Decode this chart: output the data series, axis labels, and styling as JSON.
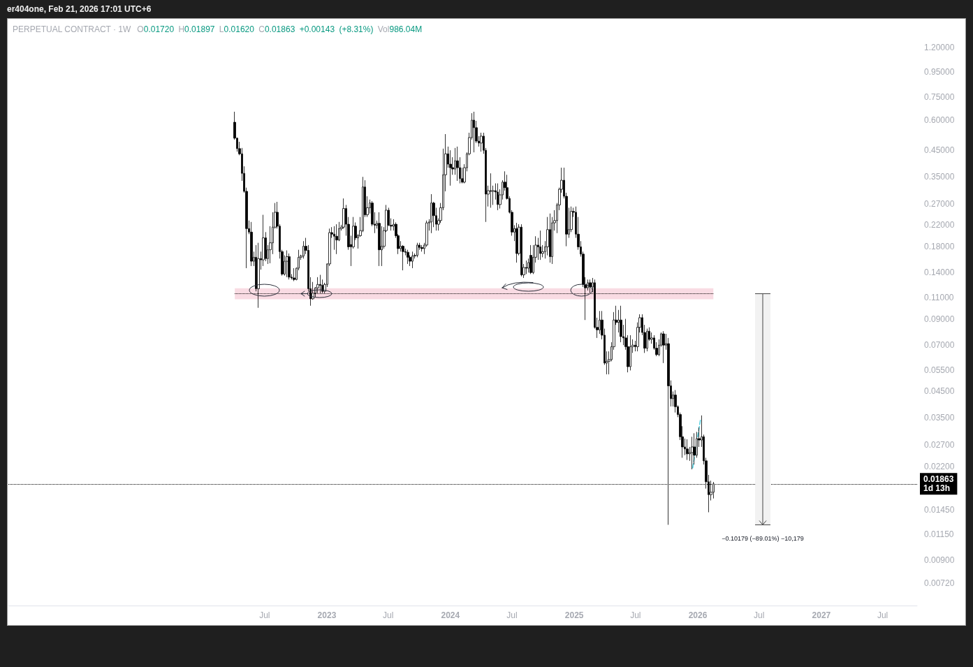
{
  "chart_data": {
    "type": "candlestick",
    "title": "PERPETUAL CONTRACT · 1W",
    "subtitle": "O0.01720 H0.01897 L0.01620 C0.01863 +0.00143 (+8.31%) Vol986.04M",
    "annotations": [
      "er404one, Feb 21, 2026 17:01 UTC+6",
      "−0.10179 (−89.01%) −10,179"
    ],
    "series": [
      {
        "color": "#000000",
        "x": [
          "2022-04-04",
          "2022-04-11",
          "2022-04-18",
          "2022-04-25",
          "2022-05-02",
          "2022-05-09",
          "2022-05-16",
          "2022-05-23",
          "2022-05-30",
          "2022-06-06",
          "2022-06-13",
          "2022-06-20",
          "2022-06-27",
          "2022-07-04",
          "2022-07-11",
          "2022-07-18",
          "2022-07-25",
          "2022-08-01",
          "2022-08-08",
          "2022-08-15",
          "2022-08-22",
          "2022-08-29",
          "2022-09-05",
          "2022-09-12",
          "2022-09-19",
          "2022-09-26",
          "2022-10-03",
          "2022-10-10",
          "2022-10-17",
          "2022-10-24",
          "2022-10-31",
          "2022-11-07",
          "2022-11-14",
          "2022-11-21",
          "2022-11-28",
          "2022-12-05",
          "2022-12-12",
          "2022-12-19",
          "2022-12-26",
          "2023-01-02",
          "2023-01-09",
          "2023-01-16",
          "2023-01-23",
          "2023-01-30",
          "2023-02-06",
          "2023-02-13",
          "2023-02-20",
          "2023-02-27",
          "2023-03-06",
          "2023-03-13",
          "2023-03-20",
          "2023-03-27",
          "2023-04-03",
          "2023-04-10",
          "2023-04-17",
          "2023-04-24",
          "2023-05-01",
          "2023-05-08",
          "2023-05-15",
          "2023-05-22",
          "2023-05-29",
          "2023-06-05",
          "2023-06-12",
          "2023-06-19",
          "2023-06-26",
          "2023-07-03",
          "2023-07-10",
          "2023-07-17",
          "2023-07-24",
          "2023-07-31",
          "2023-08-07",
          "2023-08-14",
          "2023-08-21",
          "2023-08-28",
          "2023-09-04",
          "2023-09-11",
          "2023-09-18",
          "2023-09-25",
          "2023-10-02",
          "2023-10-09",
          "2023-10-16",
          "2023-10-23",
          "2023-10-30",
          "2023-11-06",
          "2023-11-13",
          "2023-11-20",
          "2023-11-27",
          "2023-12-04",
          "2023-12-11",
          "2023-12-18",
          "2023-12-25",
          "2024-01-01",
          "2024-01-08",
          "2024-01-15",
          "2024-01-22",
          "2024-01-29",
          "2024-02-05",
          "2024-02-12",
          "2024-02-19",
          "2024-02-26",
          "2024-03-04",
          "2024-03-11",
          "2024-03-18",
          "2024-03-25",
          "2024-04-01",
          "2024-04-08",
          "2024-04-15",
          "2024-04-22",
          "2024-04-29",
          "2024-05-06",
          "2024-05-13",
          "2024-05-20",
          "2024-05-27",
          "2024-06-03",
          "2024-06-10",
          "2024-06-17",
          "2024-06-24",
          "2024-07-01",
          "2024-07-08",
          "2024-07-15",
          "2024-07-22",
          "2024-07-29",
          "2024-08-05",
          "2024-08-12",
          "2024-08-19",
          "2024-08-26",
          "2024-09-02",
          "2024-09-09",
          "2024-09-16",
          "2024-09-23",
          "2024-09-30",
          "2024-10-07",
          "2024-10-14",
          "2024-10-21",
          "2024-10-28",
          "2024-11-04",
          "2024-11-11",
          "2024-11-18",
          "2024-11-25",
          "2024-12-02",
          "2024-12-09",
          "2024-12-16",
          "2024-12-23",
          "2024-12-30",
          "2025-01-06",
          "2025-01-13",
          "2025-01-20",
          "2025-01-27",
          "2025-02-03",
          "2025-02-10",
          "2025-02-17",
          "2025-02-24",
          "2025-03-03",
          "2025-03-10",
          "2025-03-17",
          "2025-03-24",
          "2025-03-31",
          "2025-04-07",
          "2025-04-14",
          "2025-04-21",
          "2025-04-28",
          "2025-05-05",
          "2025-05-12",
          "2025-05-19",
          "2025-05-26",
          "2025-06-02",
          "2025-06-09",
          "2025-06-16",
          "2025-06-23",
          "2025-06-30",
          "2025-07-07",
          "2025-07-14",
          "2025-07-21",
          "2025-07-28",
          "2025-08-04",
          "2025-08-11",
          "2025-08-18",
          "2025-08-25",
          "2025-09-01",
          "2025-09-08",
          "2025-09-15",
          "2025-09-22",
          "2025-09-29",
          "2025-10-06",
          "2025-10-13",
          "2025-10-20",
          "2025-10-27",
          "2025-11-03",
          "2025-11-10",
          "2025-11-17",
          "2025-11-24",
          "2025-12-01",
          "2025-12-08",
          "2025-12-15",
          "2025-12-22",
          "2025-12-29",
          "2026-01-05",
          "2026-01-12",
          "2026-01-19",
          "2026-01-26",
          "2026-02-02",
          "2026-02-09",
          "2026-02-16"
        ],
        "ohlc": [
          [
            0.588,
            0.65,
            0.498,
            0.505
          ],
          [
            0.505,
            0.508,
            0.444,
            0.457
          ],
          [
            0.457,
            0.488,
            0.429,
            0.435
          ],
          [
            0.435,
            0.46,
            0.336,
            0.361
          ],
          [
            0.361,
            0.386,
            0.3,
            0.304
          ],
          [
            0.304,
            0.315,
            0.146,
            0.213
          ],
          [
            0.213,
            0.23,
            0.202,
            0.206
          ],
          [
            0.206,
            0.227,
            0.149,
            0.156
          ],
          [
            0.156,
            0.171,
            0.149,
            0.162
          ],
          [
            0.162,
            0.182,
            0.117,
            0.12
          ],
          [
            0.12,
            0.186,
            0.1,
            0.16
          ],
          [
            0.16,
            0.171,
            0.144,
            0.158
          ],
          [
            0.158,
            0.243,
            0.149,
            0.195
          ],
          [
            0.195,
            0.206,
            0.156,
            0.16
          ],
          [
            0.16,
            0.182,
            0.152,
            0.174
          ],
          [
            0.174,
            0.218,
            0.153,
            0.186
          ],
          [
            0.186,
            0.249,
            0.167,
            0.216
          ],
          [
            0.216,
            0.272,
            0.213,
            0.249
          ],
          [
            0.249,
            0.275,
            0.213,
            0.218
          ],
          [
            0.218,
            0.222,
            0.16,
            0.171
          ],
          [
            0.171,
            0.174,
            0.136,
            0.138
          ],
          [
            0.138,
            0.165,
            0.136,
            0.156
          ],
          [
            0.156,
            0.173,
            0.134,
            0.163
          ],
          [
            0.163,
            0.168,
            0.131,
            0.134
          ],
          [
            0.134,
            0.138,
            0.131,
            0.133
          ],
          [
            0.133,
            0.146,
            0.129,
            0.131
          ],
          [
            0.131,
            0.147,
            0.13,
            0.146
          ],
          [
            0.146,
            0.174,
            0.143,
            0.162
          ],
          [
            0.162,
            0.166,
            0.158,
            0.164
          ],
          [
            0.164,
            0.189,
            0.16,
            0.18
          ],
          [
            0.18,
            0.195,
            0.167,
            0.173
          ],
          [
            0.173,
            0.182,
            0.117,
            0.12
          ],
          [
            0.12,
            0.134,
            0.102,
            0.109
          ],
          [
            0.109,
            0.128,
            0.108,
            0.115
          ],
          [
            0.115,
            0.122,
            0.111,
            0.121
          ],
          [
            0.121,
            0.134,
            0.115,
            0.125
          ],
          [
            0.125,
            0.137,
            0.115,
            0.124
          ],
          [
            0.124,
            0.131,
            0.115,
            0.117
          ],
          [
            0.117,
            0.127,
            0.115,
            0.125
          ],
          [
            0.125,
            0.153,
            0.122,
            0.152
          ],
          [
            0.152,
            0.213,
            0.149,
            0.205
          ],
          [
            0.205,
            0.216,
            0.195,
            0.202
          ],
          [
            0.202,
            0.218,
            0.174,
            0.198
          ],
          [
            0.198,
            0.222,
            0.167,
            0.191
          ],
          [
            0.191,
            0.227,
            0.189,
            0.213
          ],
          [
            0.213,
            0.221,
            0.209,
            0.216
          ],
          [
            0.216,
            0.284,
            0.213,
            0.258
          ],
          [
            0.258,
            0.267,
            0.199,
            0.222
          ],
          [
            0.222,
            0.238,
            0.174,
            0.179
          ],
          [
            0.183,
            0.199,
            0.149,
            0.179
          ],
          [
            0.179,
            0.238,
            0.176,
            0.218
          ],
          [
            0.218,
            0.226,
            0.191,
            0.195
          ],
          [
            0.195,
            0.202,
            0.176,
            0.199
          ],
          [
            0.199,
            0.238,
            0.197,
            0.209
          ],
          [
            0.209,
            0.349,
            0.206,
            0.317
          ],
          [
            0.317,
            0.338,
            0.238,
            0.243
          ],
          [
            0.243,
            0.29,
            0.238,
            0.26
          ],
          [
            0.26,
            0.281,
            0.246,
            0.272
          ],
          [
            0.272,
            0.277,
            0.218,
            0.222
          ],
          [
            0.222,
            0.249,
            0.204,
            0.22
          ],
          [
            0.22,
            0.23,
            0.213,
            0.224
          ],
          [
            0.224,
            0.249,
            0.149,
            0.174
          ],
          [
            0.174,
            0.218,
            0.149,
            0.18
          ],
          [
            0.18,
            0.216,
            0.176,
            0.209
          ],
          [
            0.209,
            0.267,
            0.206,
            0.254
          ],
          [
            0.254,
            0.26,
            0.218,
            0.22
          ],
          [
            0.22,
            0.235,
            0.209,
            0.218
          ],
          [
            0.218,
            0.233,
            0.209,
            0.222
          ],
          [
            0.222,
            0.226,
            0.195,
            0.199
          ],
          [
            0.199,
            0.202,
            0.167,
            0.176
          ],
          [
            0.176,
            0.189,
            0.171,
            0.18
          ],
          [
            0.18,
            0.182,
            0.143,
            0.171
          ],
          [
            0.171,
            0.176,
            0.165,
            0.17
          ],
          [
            0.17,
            0.174,
            0.152,
            0.162
          ],
          [
            0.162,
            0.165,
            0.149,
            0.156
          ],
          [
            0.156,
            0.171,
            0.146,
            0.164
          ],
          [
            0.164,
            0.168,
            0.16,
            0.165
          ],
          [
            0.165,
            0.186,
            0.162,
            0.182
          ],
          [
            0.182,
            0.186,
            0.174,
            0.178
          ],
          [
            0.178,
            0.182,
            0.171,
            0.176
          ],
          [
            0.176,
            0.186,
            0.167,
            0.182
          ],
          [
            0.182,
            0.23,
            0.179,
            0.225
          ],
          [
            0.225,
            0.233,
            0.209,
            0.227
          ],
          [
            0.227,
            0.296,
            0.204,
            0.272
          ],
          [
            0.272,
            0.275,
            0.216,
            0.241
          ],
          [
            0.241,
            0.26,
            0.209,
            0.222
          ],
          [
            0.222,
            0.235,
            0.209,
            0.23
          ],
          [
            0.23,
            0.272,
            0.225,
            0.26
          ],
          [
            0.26,
            0.457,
            0.254,
            0.356
          ],
          [
            0.356,
            0.525,
            0.304,
            0.435
          ],
          [
            0.435,
            0.466,
            0.381,
            0.394
          ],
          [
            0.394,
            0.45,
            0.321,
            0.381
          ],
          [
            0.381,
            0.421,
            0.356,
            0.376
          ],
          [
            0.376,
            0.46,
            0.356,
            0.407
          ],
          [
            0.407,
            0.466,
            0.336,
            0.381
          ],
          [
            0.381,
            0.421,
            0.328,
            0.343
          ],
          [
            0.343,
            0.381,
            0.328,
            0.332
          ],
          [
            0.332,
            0.394,
            0.328,
            0.381
          ],
          [
            0.381,
            0.441,
            0.368,
            0.435
          ],
          [
            0.435,
            0.532,
            0.429,
            0.508
          ],
          [
            0.508,
            0.641,
            0.498,
            0.6
          ],
          [
            0.6,
            0.65,
            0.441,
            0.558
          ],
          [
            0.558,
            0.596,
            0.482,
            0.491
          ],
          [
            0.491,
            0.515,
            0.466,
            0.482
          ],
          [
            0.482,
            0.532,
            0.444,
            0.515
          ],
          [
            0.515,
            0.532,
            0.435,
            0.45
          ],
          [
            0.45,
            0.46,
            0.227,
            0.296
          ],
          [
            0.296,
            0.321,
            0.263,
            0.306
          ],
          [
            0.306,
            0.361,
            0.26,
            0.304
          ],
          [
            0.304,
            0.321,
            0.267,
            0.306
          ],
          [
            0.306,
            0.328,
            0.281,
            0.302
          ],
          [
            0.302,
            0.328,
            0.254,
            0.268
          ],
          [
            0.268,
            0.31,
            0.258,
            0.294
          ],
          [
            0.294,
            0.338,
            0.281,
            0.332
          ],
          [
            0.332,
            0.368,
            0.306,
            0.315
          ],
          [
            0.315,
            0.356,
            0.281,
            0.284
          ],
          [
            0.284,
            0.29,
            0.246,
            0.249
          ],
          [
            0.249,
            0.254,
            0.199,
            0.206
          ],
          [
            0.206,
            0.22,
            0.189,
            0.213
          ],
          [
            0.213,
            0.225,
            0.154,
            0.168
          ],
          [
            0.168,
            0.222,
            0.165,
            0.216
          ],
          [
            0.216,
            0.222,
            0.135,
            0.137
          ],
          [
            0.137,
            0.152,
            0.133,
            0.147
          ],
          [
            0.147,
            0.157,
            0.138,
            0.146
          ],
          [
            0.146,
            0.16,
            0.14,
            0.154
          ],
          [
            0.165,
            0.182,
            0.138,
            0.14
          ],
          [
            0.14,
            0.182,
            0.138,
            0.162
          ],
          [
            0.162,
            0.198,
            0.154,
            0.182
          ],
          [
            0.182,
            0.195,
            0.158,
            0.179
          ],
          [
            0.179,
            0.209,
            0.158,
            0.168
          ],
          [
            0.168,
            0.182,
            0.162,
            0.171
          ],
          [
            0.171,
            0.189,
            0.16,
            0.179
          ],
          [
            0.179,
            0.238,
            0.165,
            0.211
          ],
          [
            0.211,
            0.246,
            0.154,
            0.163
          ],
          [
            0.163,
            0.238,
            0.152,
            0.225
          ],
          [
            0.225,
            0.254,
            0.209,
            0.23
          ],
          [
            0.23,
            0.272,
            0.204,
            0.267
          ],
          [
            0.267,
            0.315,
            0.254,
            0.31
          ],
          [
            0.31,
            0.381,
            0.3,
            0.338
          ],
          [
            0.338,
            0.381,
            0.284,
            0.29
          ],
          [
            0.29,
            0.3,
            0.18,
            0.202
          ],
          [
            0.202,
            0.26,
            0.195,
            0.211
          ],
          [
            0.211,
            0.263,
            0.206,
            0.251
          ],
          [
            0.251,
            0.26,
            0.238,
            0.249
          ],
          [
            0.249,
            0.263,
            0.195,
            0.202
          ],
          [
            0.202,
            0.238,
            0.174,
            0.179
          ],
          [
            0.179,
            0.189,
            0.163,
            0.167
          ],
          [
            0.167,
            0.171,
            0.122,
            0.125
          ],
          [
            0.125,
            0.134,
            0.089,
            0.121
          ],
          [
            0.121,
            0.131,
            0.118,
            0.127
          ],
          [
            0.127,
            0.131,
            0.115,
            0.122
          ],
          [
            0.122,
            0.133,
            0.116,
            0.127
          ],
          [
            0.127,
            0.131,
            0.082,
            0.083
          ],
          [
            0.083,
            0.091,
            0.075,
            0.081
          ],
          [
            0.081,
            0.097,
            0.078,
            0.089
          ],
          [
            0.089,
            0.097,
            0.074,
            0.077
          ],
          [
            0.077,
            0.082,
            0.058,
            0.059
          ],
          [
            0.059,
            0.066,
            0.053,
            0.06
          ],
          [
            0.06,
            0.066,
            0.053,
            0.061
          ],
          [
            0.061,
            0.072,
            0.06,
            0.069
          ],
          [
            0.069,
            0.096,
            0.067,
            0.089
          ],
          [
            0.089,
            0.102,
            0.085,
            0.087
          ],
          [
            0.087,
            0.098,
            0.079,
            0.089
          ],
          [
            0.089,
            0.102,
            0.072,
            0.076
          ],
          [
            0.076,
            0.085,
            0.07,
            0.075
          ],
          [
            0.075,
            0.09,
            0.067,
            0.069
          ],
          [
            0.069,
            0.077,
            0.054,
            0.057
          ],
          [
            0.057,
            0.077,
            0.055,
            0.069
          ],
          [
            0.069,
            0.074,
            0.065,
            0.07
          ],
          [
            0.07,
            0.073,
            0.066,
            0.069
          ],
          [
            0.069,
            0.087,
            0.066,
            0.083
          ],
          [
            0.083,
            0.094,
            0.079,
            0.091
          ],
          [
            0.091,
            0.094,
            0.077,
            0.079
          ],
          [
            0.079,
            0.085,
            0.065,
            0.068
          ],
          [
            0.068,
            0.082,
            0.066,
            0.08
          ],
          [
            0.08,
            0.083,
            0.073,
            0.074
          ],
          [
            0.074,
            0.079,
            0.071,
            0.075
          ],
          [
            0.075,
            0.077,
            0.067,
            0.068
          ],
          [
            0.068,
            0.072,
            0.063,
            0.064
          ],
          [
            0.064,
            0.074,
            0.063,
            0.07
          ],
          [
            0.07,
            0.079,
            0.069,
            0.078
          ],
          [
            0.078,
            0.08,
            0.059,
            0.07
          ],
          [
            0.07,
            0.078,
            0.067,
            0.071
          ],
          [
            0.071,
            0.075,
            0.0126,
            0.0475
          ],
          [
            0.0475,
            0.05,
            0.039,
            0.042
          ],
          [
            0.042,
            0.045,
            0.039,
            0.0435
          ],
          [
            0.0435,
            0.0456,
            0.0368,
            0.0389
          ],
          [
            0.0389,
            0.0394,
            0.0352,
            0.0361
          ],
          [
            0.0361,
            0.0368,
            0.0283,
            0.0292
          ],
          [
            0.0292,
            0.0323,
            0.0239,
            0.0265
          ],
          [
            0.0265,
            0.0287,
            0.0245,
            0.026
          ],
          [
            0.026,
            0.0285,
            0.0234,
            0.0248
          ],
          [
            0.0248,
            0.0265,
            0.0232,
            0.0251
          ],
          [
            0.0251,
            0.0292,
            0.0214,
            0.0265
          ],
          [
            0.0265,
            0.0302,
            0.0224,
            0.0245
          ],
          [
            0.0245,
            0.0306,
            0.0239,
            0.0287
          ],
          [
            0.0287,
            0.0319,
            0.0265,
            0.0283
          ],
          [
            0.0283,
            0.0358,
            0.0265,
            0.0292
          ],
          [
            0.0292,
            0.0298,
            0.0224,
            0.0232
          ],
          [
            0.0232,
            0.0239,
            0.0178,
            0.019
          ],
          [
            0.019,
            0.0203,
            0.0142,
            0.0168
          ],
          [
            0.0168,
            0.0192,
            0.0159,
            0.0172
          ],
          [
            0.0172,
            0.01897,
            0.0162,
            0.01863
          ]
        ]
      },
      {
        "type": "line",
        "color": "#4dd0e1",
        "x": [
          "2025-12-17",
          "2026-01-09"
        ],
        "values": [
          0.0217,
          0.0345
        ],
        "line_style": "dashed",
        "marker": "none"
      }
    ],
    "xlim": [
      "2020-06-04",
      "2027-10-11"
    ],
    "xticks": [
      {
        "value": "2022-07",
        "label": "Jul"
      },
      "2023",
      {
        "value": "2023-07",
        "label": "Jul"
      },
      "2024",
      {
        "value": "2024-07",
        "label": "Jul"
      },
      "2025",
      {
        "value": "2025-07",
        "label": "Jul"
      },
      "2026",
      {
        "value": "2026-07",
        "label": "Jul"
      },
      "2027",
      {
        "value": "2027-07",
        "label": "Jul"
      }
    ],
    "ylim": [
      0.00583,
      1.567
    ],
    "yticks": [
      {
        "value": 1.2,
        "label": "1.20000"
      },
      {
        "value": 0.95,
        "label": "0.95000"
      },
      {
        "value": 0.75,
        "label": "0.75000"
      },
      {
        "value": 0.6,
        "label": "0.60000"
      },
      {
        "value": 0.45,
        "label": "0.45000"
      },
      {
        "value": 0.35,
        "label": "0.35000"
      },
      {
        "value": 0.27,
        "label": "0.27000"
      },
      {
        "value": 0.22,
        "label": "0.22000"
      },
      {
        "value": 0.18,
        "label": "0.18000"
      },
      {
        "value": 0.14,
        "label": "0.14000"
      },
      {
        "value": 0.11,
        "label": "0.11000"
      },
      {
        "value": 0.09,
        "label": "0.09000"
      },
      {
        "value": 0.07,
        "label": "0.07000"
      },
      {
        "value": 0.055,
        "label": "0.05500"
      },
      {
        "value": 0.045,
        "label": "0.04500"
      },
      {
        "value": 0.035,
        "label": "0.03500"
      },
      {
        "value": 0.027,
        "label": "0.02700"
      },
      {
        "value": 0.022,
        "label": "0.02200"
      },
      {
        "value": 0.0145,
        "label": "0.01450"
      },
      {
        "value": 0.0115,
        "label": "0.01150"
      },
      {
        "value": 0.009,
        "label": "0.00900"
      },
      {
        "value": 0.0072,
        "label": "0.00720"
      }
    ],
    "log": true,
    "ref_lines": [
      {
        "axis": "y",
        "value": 0.01863,
        "label": "0.01863\n1d 13h",
        "color": "#000000",
        "line_style": "dotted"
      },
      {
        "axis": "y",
        "value": 0.1144,
        "color": "#000000",
        "line_style": "dotted"
      }
    ],
    "bands": [
      {
        "axis": "y",
        "from": 0.1085,
        "to": 0.1205,
        "color": "#f9dbe3"
      }
    ]
  }
}
